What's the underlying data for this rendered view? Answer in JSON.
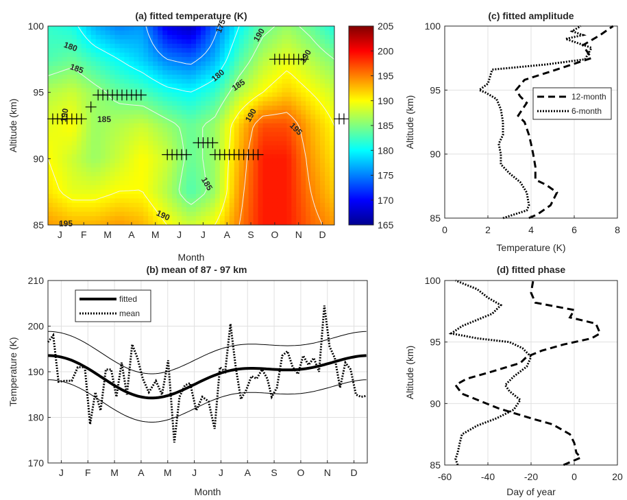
{
  "chart_data": [
    {
      "id": "a",
      "type": "heatmap",
      "title": "(a) fitted temperature (K)",
      "xlabel": "Month",
      "ylabel": "Altitude (km)",
      "x_ticks": [
        "J",
        "F",
        "M",
        "A",
        "M",
        "J",
        "J",
        "A",
        "S",
        "O",
        "N",
        "D"
      ],
      "y_ticks": [
        85,
        90,
        95,
        100
      ],
      "ylim": [
        85,
        100
      ],
      "colorbar": {
        "ticks": [
          165,
          170,
          175,
          180,
          185,
          190,
          195,
          200,
          205
        ],
        "range": [
          165,
          205
        ]
      },
      "colormap": [
        "#00008f",
        "#0000ff",
        "#0080ff",
        "#00ffff",
        "#80ff80",
        "#ffff00",
        "#ff8000",
        "#ff0000",
        "#800000"
      ],
      "contour_labels": [
        "175",
        "190",
        "180",
        "190",
        "185",
        "180",
        "185",
        "190",
        "185",
        "190",
        "195",
        "185",
        "190",
        "195"
      ],
      "rows_altitudes": [
        100,
        97.5,
        95,
        92.5,
        90,
        87.5,
        85
      ],
      "columns_days": [
        1,
        32,
        60,
        91,
        121,
        152,
        182,
        213,
        244,
        274,
        305,
        335,
        365
      ],
      "values": [
        [
          182,
          181,
          177,
          175,
          176,
          169,
          167,
          174,
          180,
          184,
          186,
          184,
          181
        ],
        [
          183,
          184,
          182,
          180,
          178,
          175,
          174,
          177,
          183,
          187,
          189,
          187,
          185
        ],
        [
          187,
          188,
          186,
          184,
          183,
          181,
          180,
          182,
          187,
          190,
          192,
          190,
          188
        ],
        [
          189,
          190,
          186,
          187,
          188,
          186,
          184,
          186,
          192,
          197,
          197,
          193,
          190
        ],
        [
          190,
          188,
          186,
          188,
          190,
          188,
          184,
          186,
          193,
          199,
          199,
          194,
          191
        ],
        [
          191,
          189,
          189,
          190,
          190,
          187,
          183,
          186,
          194,
          199,
          199,
          195,
          192
        ],
        [
          194,
          193,
          193,
          194,
          193,
          190,
          188,
          190,
          195,
          199,
          199,
          196,
          194
        ]
      ],
      "markers": [
        {
          "altitude": 93.0,
          "month_pos": [
            -0.3,
            -0.1,
            0.1,
            0.3,
            0.5,
            0.7,
            0.9
          ]
        },
        {
          "altitude": 93.0,
          "month_pos": [
            11.7,
            11.9
          ]
        },
        {
          "altitude": 93.9,
          "month_pos": [
            1.3
          ]
        },
        {
          "altitude": 94.8,
          "month_pos": [
            1.6,
            1.8,
            2.0,
            2.2,
            2.4,
            2.6,
            2.8,
            3.0,
            3.2,
            3.4
          ]
        },
        {
          "altitude": 97.5,
          "month_pos": [
            9.0,
            9.2,
            9.4,
            9.6,
            9.8,
            10.0,
            10.2
          ]
        },
        {
          "altitude": 91.2,
          "month_pos": [
            5.8,
            6.0,
            6.2,
            6.4
          ]
        },
        {
          "altitude": 90.3,
          "month_pos": [
            4.5,
            4.7,
            4.9,
            5.1,
            5.3
          ]
        },
        {
          "altitude": 90.3,
          "month_pos": [
            6.5,
            6.7,
            6.9,
            7.1,
            7.3,
            7.5,
            7.7,
            7.9,
            8.1,
            8.3
          ]
        }
      ]
    },
    {
      "id": "b",
      "type": "line",
      "title": "(b) mean of 87 - 97 km",
      "xlabel": "Month",
      "ylabel": "Temperature (K)",
      "x_ticks": [
        "J",
        "F",
        "M",
        "A",
        "M",
        "J",
        "J",
        "A",
        "S",
        "O",
        "N",
        "D"
      ],
      "y_ticks": [
        170,
        180,
        190,
        200,
        210
      ],
      "ylim": [
        170,
        210
      ],
      "legend": [
        "fitted",
        "mean"
      ],
      "legend_position": "top-left",
      "grid": true,
      "fitted_params": {
        "offset": 189.5,
        "a12": 3.5,
        "peak12_day": 320,
        "a6": 2.0,
        "peak6_day": 20
      },
      "band_halfwidth": 5.3,
      "series": [
        {
          "name": "mean",
          "x": [
            1,
            7,
            13,
            20,
            28,
            35,
            43,
            49,
            55,
            61,
            67,
            73,
            79,
            85,
            91,
            97,
            103,
            109,
            116,
            124,
            131,
            138,
            145,
            151,
            157,
            163,
            170,
            177,
            184,
            191,
            197,
            203,
            209,
            215,
            221,
            227,
            233,
            239,
            245,
            251,
            256,
            262,
            268,
            274,
            280,
            286,
            292,
            298,
            304,
            310,
            316,
            322,
            328,
            334,
            340,
            346,
            352,
            358,
            364
          ],
          "y": [
            196.5,
            198,
            187.8,
            188,
            188,
            191,
            191,
            178.5,
            185.5,
            181.5,
            190.5,
            190.5,
            184.5,
            192,
            185,
            196,
            193,
            188.5,
            185.5,
            188,
            185,
            192.5,
            174.5,
            184.5,
            187,
            187.5,
            181.5,
            184.5,
            183.5,
            177.5,
            191,
            190,
            200.5,
            191,
            184,
            186,
            189,
            188.5,
            190.5,
            188.5,
            184.5,
            186.5,
            193.5,
            194.5,
            191,
            189.5,
            193.5,
            191.5,
            193,
            190,
            204.5,
            195.5,
            193,
            186.5,
            192,
            190.5,
            185,
            184.5,
            184.7
          ]
        }
      ]
    },
    {
      "id": "c",
      "type": "line",
      "title": "(c) fitted amplitude",
      "xlabel": "Temperature (K)",
      "ylabel": "Altitude (km)",
      "x_ticks": [
        0,
        2,
        4,
        6,
        8
      ],
      "y_ticks": [
        85,
        90,
        95,
        100
      ],
      "xlim": [
        0,
        8
      ],
      "ylim": [
        85,
        100
      ],
      "legend": [
        "12-month",
        "6-month"
      ],
      "legend_position": "top-right",
      "grid": true,
      "series": [
        {
          "name": "12-month",
          "x": [
            3.9,
            4.3,
            4.9,
            5.2,
            4.7,
            4.2,
            4.2,
            4.1,
            4.0,
            3.9,
            3.7,
            3.4,
            3.8,
            3.5,
            3.3,
            3.7,
            5.0,
            6.8,
            6.4,
            7.2,
            7.8
          ],
          "y": [
            85.0,
            85.3,
            86.0,
            87.0,
            87.6,
            88.0,
            89.0,
            90.0,
            90.8,
            91.5,
            92.5,
            93.0,
            94.0,
            94.5,
            95.0,
            95.8,
            96.5,
            97.5,
            98.5,
            99.3,
            100.0
          ]
        },
        {
          "name": "6-month",
          "x": [
            2.7,
            3.8,
            3.9,
            3.8,
            3.5,
            3.0,
            2.6,
            2.6,
            2.5,
            2.7,
            2.7,
            2.6,
            2.4,
            1.9,
            1.6,
            2.0,
            2.2,
            4.7,
            6.5,
            6.8,
            5.6,
            6.4,
            5.9,
            6.3
          ],
          "y": [
            85.0,
            85.6,
            86.0,
            87.0,
            87.8,
            88.5,
            89.2,
            90.0,
            90.8,
            91.5,
            92.5,
            93.5,
            94.3,
            94.8,
            95.0,
            95.5,
            96.6,
            97.0,
            97.4,
            98.3,
            99.0,
            99.3,
            99.6,
            100.0
          ]
        }
      ]
    },
    {
      "id": "d",
      "type": "line",
      "title": "(d) fitted phase",
      "xlabel": "Day of year",
      "ylabel": "Altitude (km)",
      "x_ticks": [
        -60,
        -40,
        -20,
        0,
        20
      ],
      "y_ticks": [
        85,
        90,
        95,
        100
      ],
      "xlim": [
        -60,
        20
      ],
      "ylim": [
        85,
        100
      ],
      "grid": true,
      "series": [
        {
          "name": "12-month",
          "x": [
            -5,
            3,
            1,
            0,
            -2,
            -10,
            -20,
            -35,
            -52,
            -55,
            -50,
            -40,
            -25,
            -22,
            -15,
            -5,
            8,
            12,
            10,
            -2,
            0,
            -18,
            -20,
            -19
          ],
          "y": [
            85.0,
            85.6,
            86.0,
            86.8,
            87.5,
            88.3,
            88.8,
            89.6,
            90.8,
            91.5,
            92.0,
            92.5,
            93.3,
            93.8,
            94.3,
            94.8,
            95.3,
            95.7,
            96.5,
            97.0,
            97.6,
            98.2,
            99.0,
            100.0
          ]
        },
        {
          "name": "6-month",
          "x": [
            -54,
            -55,
            -54,
            -53,
            -52,
            -45,
            -36,
            -28,
            -25,
            -30,
            -32,
            -28,
            -22,
            -20,
            -24,
            -30,
            -45,
            -57,
            -52,
            -38,
            -34,
            -40,
            -45,
            -55
          ],
          "y": [
            85.0,
            85.5,
            86.0,
            86.8,
            87.5,
            88.2,
            88.8,
            89.5,
            90.3,
            91.0,
            91.5,
            92.2,
            93.0,
            93.8,
            94.5,
            95.0,
            95.3,
            95.7,
            96.3,
            97.3,
            98.0,
            98.6,
            99.3,
            100.0
          ]
        }
      ]
    }
  ]
}
